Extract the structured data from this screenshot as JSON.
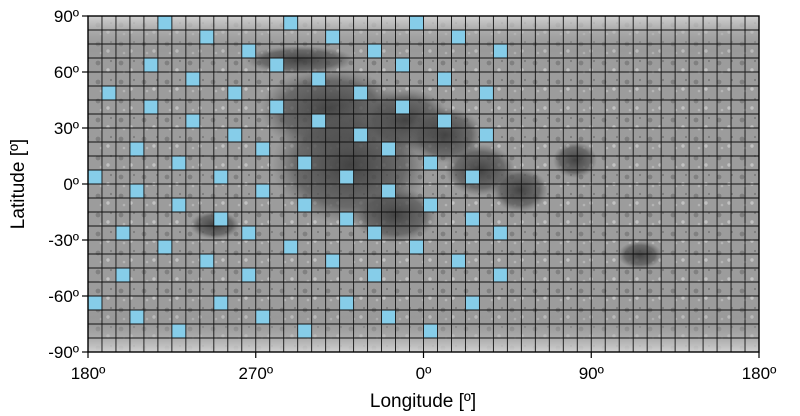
{
  "map": {
    "projection": "equirectangular",
    "basemap": "grayscale lunar surface mosaic",
    "x_axis": {
      "label": "Longitude [º]",
      "ticks": [
        "180º",
        "270º",
        "0º",
        "90º",
        "180º"
      ]
    },
    "y_axis": {
      "label": "Latitude [º]",
      "ticks": [
        "90º",
        "60º",
        "30º",
        "0º",
        "-30º",
        "-60º",
        "-90º"
      ]
    },
    "grid": {
      "cell_degrees": 7.5,
      "color": "#111111"
    },
    "highlight_color": "#86cde9",
    "highlight_cells": [
      {
        "col": 5,
        "row": 0
      },
      {
        "col": 14,
        "row": 0
      },
      {
        "col": 23,
        "row": 0
      },
      {
        "col": 8,
        "row": 1
      },
      {
        "col": 17,
        "row": 1
      },
      {
        "col": 26,
        "row": 1
      },
      {
        "col": 11,
        "row": 2
      },
      {
        "col": 20,
        "row": 2
      },
      {
        "col": 29,
        "row": 2
      },
      {
        "col": 4,
        "row": 3
      },
      {
        "col": 13,
        "row": 3
      },
      {
        "col": 22,
        "row": 3
      },
      {
        "col": 7,
        "row": 4
      },
      {
        "col": 16,
        "row": 4
      },
      {
        "col": 25,
        "row": 4
      },
      {
        "col": 1,
        "row": 5
      },
      {
        "col": 10,
        "row": 5
      },
      {
        "col": 19,
        "row": 5
      },
      {
        "col": 28,
        "row": 5
      },
      {
        "col": 4,
        "row": 6
      },
      {
        "col": 13,
        "row": 6
      },
      {
        "col": 22,
        "row": 6
      },
      {
        "col": 7,
        "row": 7
      },
      {
        "col": 16,
        "row": 7
      },
      {
        "col": 25,
        "row": 7
      },
      {
        "col": 10,
        "row": 8
      },
      {
        "col": 19,
        "row": 8
      },
      {
        "col": 28,
        "row": 8
      },
      {
        "col": 3,
        "row": 9
      },
      {
        "col": 12,
        "row": 9
      },
      {
        "col": 21,
        "row": 9
      },
      {
        "col": 6,
        "row": 10
      },
      {
        "col": 15,
        "row": 10
      },
      {
        "col": 24,
        "row": 10
      },
      {
        "col": 0,
        "row": 11
      },
      {
        "col": 9,
        "row": 11
      },
      {
        "col": 18,
        "row": 11
      },
      {
        "col": 27,
        "row": 11
      },
      {
        "col": 3,
        "row": 12
      },
      {
        "col": 12,
        "row": 12
      },
      {
        "col": 21,
        "row": 12
      },
      {
        "col": 6,
        "row": 13
      },
      {
        "col": 15,
        "row": 13
      },
      {
        "col": 24,
        "row": 13
      },
      {
        "col": 9,
        "row": 14
      },
      {
        "col": 18,
        "row": 14
      },
      {
        "col": 27,
        "row": 14
      },
      {
        "col": 2,
        "row": 15
      },
      {
        "col": 11,
        "row": 15
      },
      {
        "col": 20,
        "row": 15
      },
      {
        "col": 29,
        "row": 15
      },
      {
        "col": 5,
        "row": 16
      },
      {
        "col": 14,
        "row": 16
      },
      {
        "col": 23,
        "row": 16
      },
      {
        "col": 8,
        "row": 17
      },
      {
        "col": 17,
        "row": 17
      },
      {
        "col": 26,
        "row": 17
      },
      {
        "col": 2,
        "row": 18
      },
      {
        "col": 11,
        "row": 18
      },
      {
        "col": 20,
        "row": 18
      },
      {
        "col": 29,
        "row": 18
      },
      {
        "col": 0,
        "row": 20
      },
      {
        "col": 9,
        "row": 20
      },
      {
        "col": 18,
        "row": 20
      },
      {
        "col": 27,
        "row": 20
      },
      {
        "col": 3,
        "row": 21
      },
      {
        "col": 12,
        "row": 21
      },
      {
        "col": 21,
        "row": 21
      },
      {
        "col": 6,
        "row": 22
      },
      {
        "col": 15,
        "row": 22
      },
      {
        "col": 24,
        "row": 22
      }
    ]
  }
}
